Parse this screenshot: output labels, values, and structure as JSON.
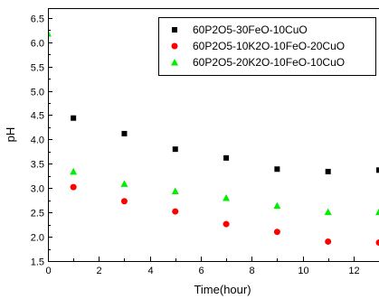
{
  "chart_data": {
    "type": "scatter",
    "xlabel": "Time(hour)",
    "ylabel": "pH",
    "xlim": [
      0,
      13
    ],
    "ylim": [
      1.5,
      6.7
    ],
    "xticks": [
      0,
      2,
      4,
      6,
      8,
      10,
      12
    ],
    "yticks": [
      1.5,
      2.0,
      2.5,
      3.0,
      3.5,
      4.0,
      4.5,
      5.0,
      5.5,
      6.0,
      6.5
    ],
    "xtick_labels": [
      "0",
      "2",
      "4",
      "6",
      "8",
      "10",
      "12"
    ],
    "ytick_labels": [
      "1.5",
      "2.0",
      "2.5",
      "3.0",
      "3.5",
      "4.0",
      "4.5",
      "5.0",
      "5.5",
      "6.0",
      "6.5"
    ],
    "grid": false,
    "legend_position": "top-right",
    "series": [
      {
        "name": "60P2O5-30FeO-10CuO",
        "marker": "square",
        "color": "#000000",
        "x": [
          1,
          3,
          5,
          7,
          9,
          11,
          13
        ],
        "y": [
          4.44,
          4.12,
          3.8,
          3.62,
          3.39,
          3.34,
          3.37
        ]
      },
      {
        "name": "60P2O5-10K2O-10FeO-20CuO",
        "marker": "circle",
        "color": "#ff0000",
        "x": [
          1,
          3,
          5,
          7,
          9,
          11,
          13
        ],
        "y": [
          3.02,
          2.73,
          2.52,
          2.26,
          2.1,
          1.9,
          1.88
        ]
      },
      {
        "name": "60P2O5-20K2O-10FeO-10CuO",
        "marker": "triangle",
        "color": "#00ee00",
        "x": [
          0,
          1,
          3,
          5,
          7,
          9,
          11,
          13
        ],
        "y": [
          6.18,
          3.34,
          3.09,
          2.94,
          2.8,
          2.64,
          2.51,
          2.51
        ]
      }
    ]
  }
}
